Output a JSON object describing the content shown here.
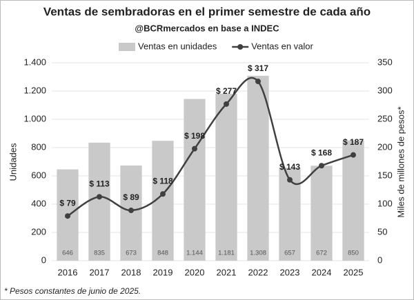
{
  "chart_data": {
    "type": "bar",
    "title": "Ventas de sembradoras en el primer semestre de cada año",
    "subtitle": "@BCRmercados en base a INDEC",
    "y_label": "Unidades",
    "y2_label": "Miles de millones de pesos*",
    "footnote": "* Pesos constantes de junio de 2025.",
    "categories": [
      "2016",
      "2017",
      "2018",
      "2019",
      "2020",
      "2021",
      "2022",
      "2023",
      "2024",
      "2025"
    ],
    "series": [
      {
        "name": "Ventas en unidades",
        "type": "bar",
        "color": "#c9c9c9",
        "values": [
          646,
          835,
          673,
          848,
          1144,
          1181,
          1308,
          657,
          672,
          850
        ],
        "value_labels": [
          "646",
          "835",
          "673",
          "848",
          "1.144",
          "1.181",
          "1.308",
          "657",
          "672",
          "850"
        ]
      },
      {
        "name": "Ventas en valor",
        "type": "line",
        "color": "#404040",
        "axis": "y2",
        "values": [
          79,
          113,
          89,
          118,
          198,
          277,
          317,
          143,
          168,
          187
        ],
        "value_labels": [
          "$ 79",
          "$ 113",
          "$ 89",
          "$ 118",
          "$ 198",
          "$ 277",
          "$ 317",
          "$ 143",
          "$ 168",
          "$ 187"
        ]
      }
    ],
    "ylim": [
      0,
      1400
    ],
    "yticks": [
      0,
      200,
      400,
      600,
      800,
      {
        "value": 1000,
        "label": "1.000"
      },
      {
        "value": 1200,
        "label": "1.200"
      },
      {
        "value": 1400,
        "label": "1.400"
      }
    ],
    "y2lim": [
      0,
      350
    ],
    "y2ticks": [
      0,
      50,
      100,
      150,
      200,
      250,
      300,
      350
    ],
    "grid": true,
    "legend": "top"
  }
}
